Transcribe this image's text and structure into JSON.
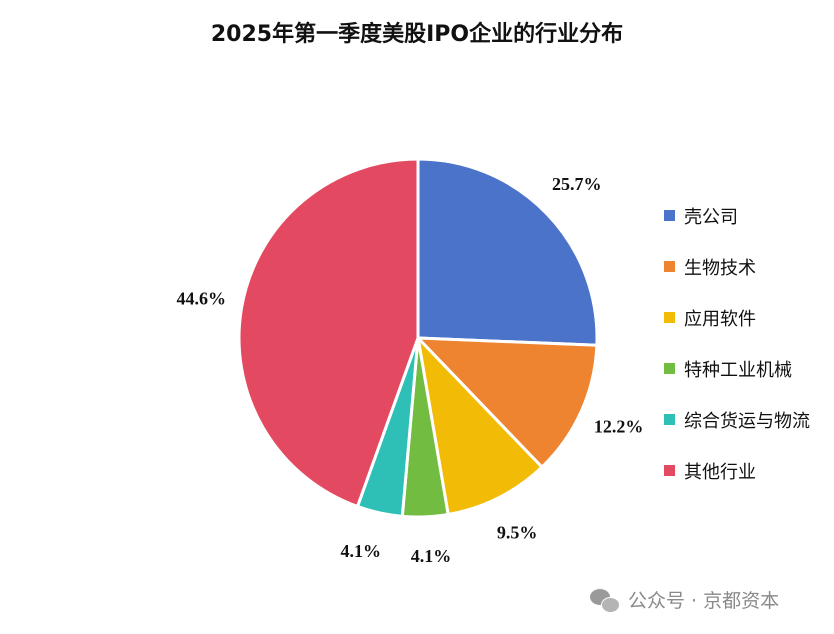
{
  "chart_data": {
    "type": "pie",
    "title": "2025年第一季度美股IPO企业的行业分布",
    "categories": [
      "壳公司",
      "生物技术",
      "应用软件",
      "特种工业机械",
      "综合货运与物流",
      "其他行业"
    ],
    "values": [
      25.7,
      12.2,
      9.5,
      4.1,
      4.1,
      44.6
    ],
    "data_labels": [
      "25.7%",
      "12.2%",
      "9.5%",
      "4.1%",
      "4.1%",
      "44.6%"
    ],
    "colors": [
      "#4A73C9",
      "#EE8430",
      "#F2BC06",
      "#72BC41",
      "#2EC0B6",
      "#E34A61"
    ],
    "legend_position": "right"
  },
  "watermark": {
    "icon": "wechat-icon",
    "text": "公众号 · 京都资本"
  }
}
